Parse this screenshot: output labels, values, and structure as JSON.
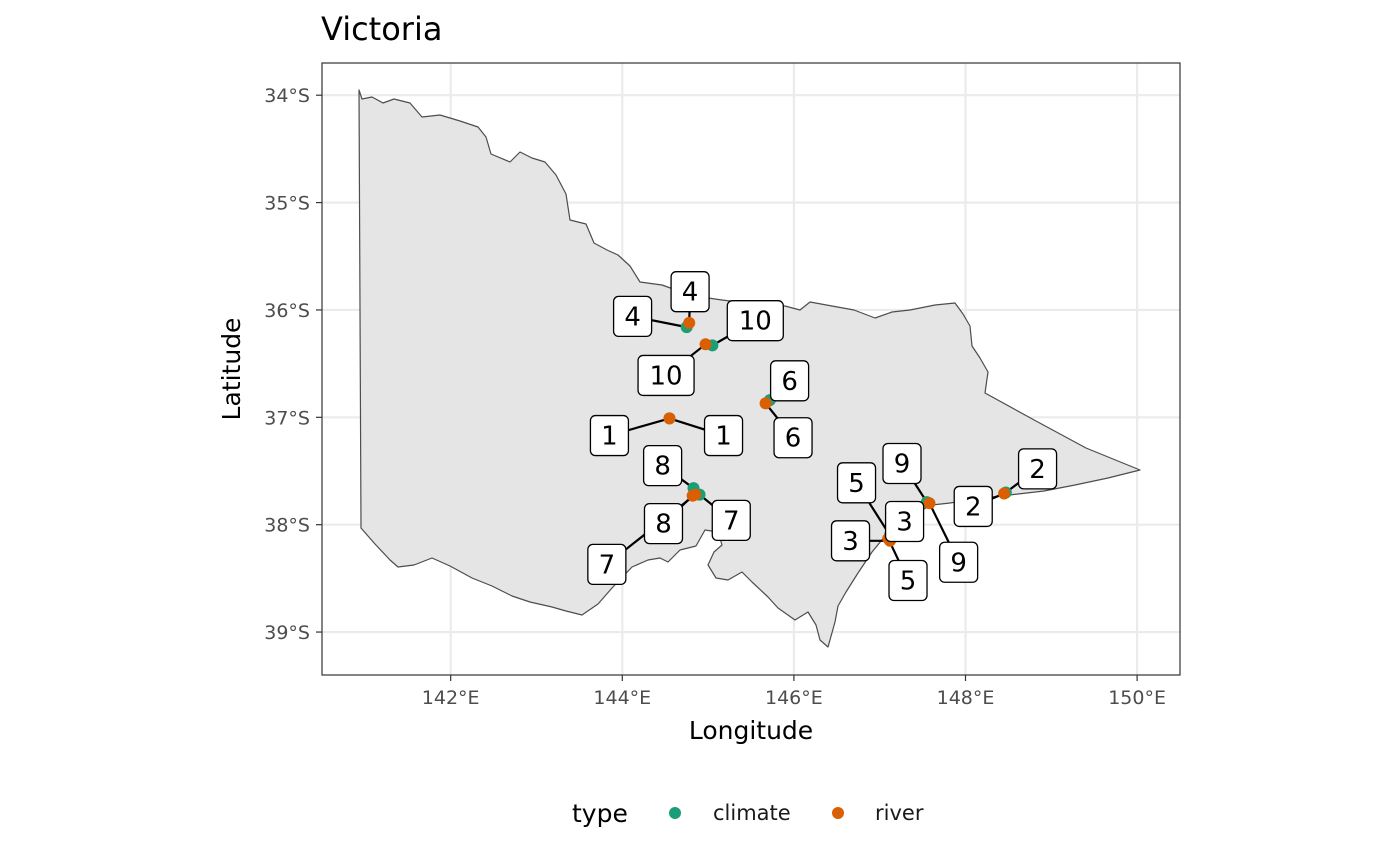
{
  "title": "Victoria",
  "xlabel": "Longitude",
  "ylabel": "Latitude",
  "x_ticks": [
    "142°E",
    "144°E",
    "146°E",
    "148°E",
    "150°E"
  ],
  "y_ticks": [
    "34°S",
    "35°S",
    "36°S",
    "37°S",
    "38°S",
    "39°S"
  ],
  "legend": {
    "title": "type",
    "items": [
      {
        "label": "climate",
        "color": "#1b9e77"
      },
      {
        "label": "river",
        "color": "#d95f02"
      }
    ]
  },
  "colors": {
    "climate": "#1b9e77",
    "river": "#d95f02",
    "land": "#e5e5e5",
    "grid": "#ebebeb",
    "border": "#333333"
  },
  "chart_data": {
    "type": "scatter",
    "xlim": [
      140.5,
      150.5
    ],
    "ylim": [
      -39.4,
      -33.7
    ],
    "grid": true,
    "legend_position": "bottom",
    "series": [
      {
        "name": "climate",
        "points": [
          {
            "id": "1",
            "lon": 144.55,
            "lat": -37.01
          },
          {
            "id": "2",
            "lon": 148.47,
            "lat": -37.7
          },
          {
            "id": "3",
            "lon": 147.14,
            "lat": -38.12
          },
          {
            "id": "4",
            "lon": 144.75,
            "lat": -36.16
          },
          {
            "id": "5",
            "lon": 147.12,
            "lat": -38.1
          },
          {
            "id": "6",
            "lon": 145.72,
            "lat": -36.84
          },
          {
            "id": "7",
            "lon": 144.9,
            "lat": -37.72
          },
          {
            "id": "8",
            "lon": 144.83,
            "lat": -37.66
          },
          {
            "id": "9",
            "lon": 147.55,
            "lat": -37.79
          },
          {
            "id": "10",
            "lon": 145.05,
            "lat": -36.33
          }
        ]
      },
      {
        "name": "river",
        "points": [
          {
            "id": "1",
            "lon": 144.55,
            "lat": -37.01
          },
          {
            "id": "2",
            "lon": 148.45,
            "lat": -37.71
          },
          {
            "id": "3",
            "lon": 147.12,
            "lat": -38.15
          },
          {
            "id": "4",
            "lon": 144.78,
            "lat": -36.12
          },
          {
            "id": "5",
            "lon": 147.1,
            "lat": -38.13
          },
          {
            "id": "6",
            "lon": 145.67,
            "lat": -36.87
          },
          {
            "id": "7",
            "lon": 144.85,
            "lat": -37.72
          },
          {
            "id": "8",
            "lon": 144.82,
            "lat": -37.73
          },
          {
            "id": "9",
            "lon": 147.58,
            "lat": -37.8
          },
          {
            "id": "10",
            "lon": 144.97,
            "lat": -36.32
          }
        ]
      }
    ],
    "labels": [
      {
        "text": "4",
        "lon": 144.12,
        "lat": -36.06,
        "series": "climate",
        "idx": 3
      },
      {
        "text": "4",
        "lon": 144.79,
        "lat": -35.83,
        "series": "river",
        "idx": 3
      },
      {
        "text": "10",
        "lon": 145.55,
        "lat": -36.1,
        "series": "climate",
        "idx": 9
      },
      {
        "text": "10",
        "lon": 144.51,
        "lat": -36.61,
        "series": "river",
        "idx": 9
      },
      {
        "text": "6",
        "lon": 145.95,
        "lat": -36.66,
        "series": "climate",
        "idx": 5
      },
      {
        "text": "6",
        "lon": 145.99,
        "lat": -37.19,
        "series": "river",
        "idx": 5
      },
      {
        "text": "1",
        "lon": 143.85,
        "lat": -37.17,
        "series": "climate",
        "idx": 0
      },
      {
        "text": "1",
        "lon": 145.18,
        "lat": -37.17,
        "series": "river",
        "idx": 0
      },
      {
        "text": "8",
        "lon": 144.47,
        "lat": -37.45,
        "series": "climate",
        "idx": 7
      },
      {
        "text": "8",
        "lon": 144.48,
        "lat": -37.99,
        "series": "river",
        "idx": 7
      },
      {
        "text": "7",
        "lon": 145.27,
        "lat": -37.96,
        "series": "climate",
        "idx": 6
      },
      {
        "text": "7",
        "lon": 143.82,
        "lat": -38.37,
        "series": "river",
        "idx": 6
      },
      {
        "text": "5",
        "lon": 146.73,
        "lat": -37.61,
        "series": "climate",
        "idx": 4
      },
      {
        "text": "5",
        "lon": 147.33,
        "lat": -38.52,
        "series": "river",
        "idx": 4
      },
      {
        "text": "3",
        "lon": 147.29,
        "lat": -37.97,
        "series": "climate",
        "idx": 2
      },
      {
        "text": "3",
        "lon": 146.66,
        "lat": -38.15,
        "series": "river",
        "idx": 2
      },
      {
        "text": "9",
        "lon": 147.26,
        "lat": -37.43,
        "series": "climate",
        "idx": 8
      },
      {
        "text": "9",
        "lon": 147.92,
        "lat": -38.35,
        "series": "river",
        "idx": 8
      },
      {
        "text": "2",
        "lon": 148.84,
        "lat": -37.48,
        "series": "climate",
        "idx": 1
      },
      {
        "text": "2",
        "lon": 148.09,
        "lat": -37.83,
        "series": "river",
        "idx": 1
      }
    ]
  }
}
